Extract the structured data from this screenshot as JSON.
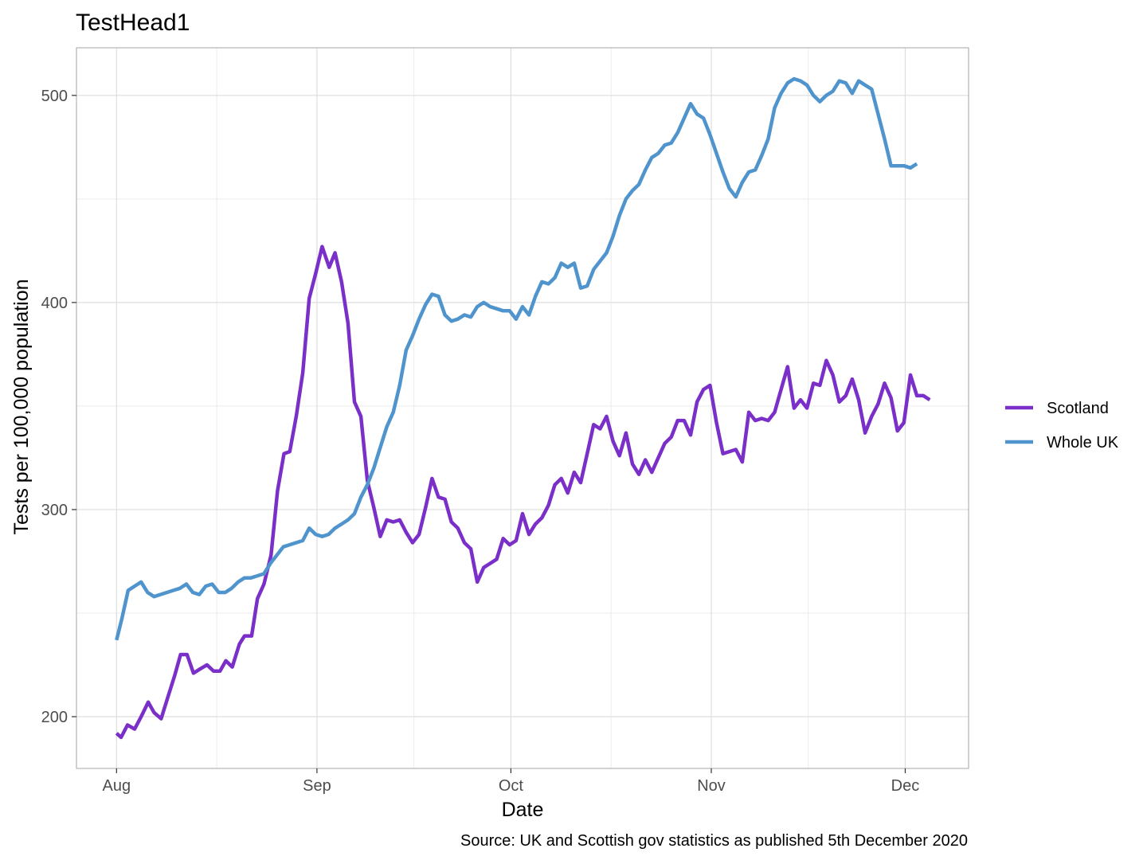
{
  "chart_data": {
    "type": "line",
    "title": "TestHead1",
    "xlabel": "Date",
    "ylabel": "Tests per 100,000 population",
    "caption": "Source: UK and Scottish gov statistics as published 5th December 2020",
    "x_tick_labels": [
      "Aug",
      "Sep",
      "Oct",
      "Nov",
      "Dec"
    ],
    "x_tick_days": [
      0,
      31,
      61,
      92,
      122
    ],
    "y_ticks": [
      200,
      300,
      400,
      500
    ],
    "y_minor_ticks": [
      250,
      350,
      450
    ],
    "x_minor_days": [
      15.5,
      46,
      76.5,
      107
    ],
    "xlim_days": [
      -6.2,
      131.8
    ],
    "ylim": [
      175,
      523
    ],
    "grid": true,
    "legend_position": "right",
    "x_start_date": "2020-08-01",
    "series": [
      {
        "name": "Scotland",
        "color": "#7B2FC9",
        "values": [
          [
            0,
            192
          ],
          [
            0.7,
            190
          ],
          [
            1.7,
            196
          ],
          [
            2.8,
            194
          ],
          [
            3.8,
            200
          ],
          [
            4.9,
            207
          ],
          [
            5.8,
            202
          ],
          [
            6.9,
            199
          ],
          [
            8,
            210
          ],
          [
            9,
            220
          ],
          [
            9.9,
            230
          ],
          [
            10.9,
            230
          ],
          [
            11.9,
            221
          ],
          [
            12.9,
            223
          ],
          [
            14,
            225
          ],
          [
            15,
            222
          ],
          [
            16,
            222
          ],
          [
            16.9,
            227
          ],
          [
            17.9,
            224
          ],
          [
            19,
            235
          ],
          [
            19.8,
            239
          ],
          [
            20.9,
            239
          ],
          [
            21.8,
            257
          ],
          [
            22.8,
            264
          ],
          [
            23.9,
            278
          ],
          [
            24.9,
            309
          ],
          [
            25.9,
            327
          ],
          [
            26.8,
            328
          ],
          [
            27.8,
            345
          ],
          [
            28.8,
            366
          ],
          [
            29.8,
            402
          ],
          [
            30.8,
            414
          ],
          [
            31.8,
            427
          ],
          [
            32.9,
            417
          ],
          [
            33.8,
            424
          ],
          [
            34.8,
            410
          ],
          [
            35.8,
            390
          ],
          [
            36.8,
            352
          ],
          [
            37.8,
            345
          ],
          [
            38.8,
            314
          ],
          [
            39.8,
            301
          ],
          [
            40.8,
            287
          ],
          [
            41.8,
            295
          ],
          [
            42.8,
            294
          ],
          [
            43.8,
            295
          ],
          [
            44.8,
            289
          ],
          [
            45.8,
            284
          ],
          [
            46.8,
            288
          ],
          [
            47.8,
            301
          ],
          [
            48.8,
            315
          ],
          [
            49.8,
            306
          ],
          [
            50.8,
            305
          ],
          [
            51.8,
            294
          ],
          [
            52.8,
            291
          ],
          [
            53.8,
            284
          ],
          [
            54.8,
            281
          ],
          [
            55.8,
            265
          ],
          [
            56.8,
            272
          ],
          [
            57.8,
            274
          ],
          [
            58.8,
            276
          ],
          [
            59.8,
            286
          ],
          [
            60.8,
            283
          ],
          [
            61.8,
            285
          ],
          [
            62.8,
            298
          ],
          [
            63.8,
            288
          ],
          [
            64.8,
            293
          ],
          [
            65.8,
            296
          ],
          [
            66.8,
            302
          ],
          [
            67.8,
            312
          ],
          [
            68.8,
            315
          ],
          [
            69.8,
            308
          ],
          [
            70.8,
            318
          ],
          [
            71.8,
            313
          ],
          [
            72.8,
            327
          ],
          [
            73.8,
            341
          ],
          [
            74.8,
            339
          ],
          [
            75.8,
            345
          ],
          [
            76.8,
            333
          ],
          [
            77.8,
            326
          ],
          [
            78.8,
            337
          ],
          [
            79.8,
            322
          ],
          [
            80.8,
            317
          ],
          [
            81.8,
            324
          ],
          [
            82.8,
            318
          ],
          [
            83.8,
            325
          ],
          [
            84.8,
            332
          ],
          [
            85.8,
            335
          ],
          [
            86.8,
            343
          ],
          [
            87.8,
            343
          ],
          [
            88.8,
            336
          ],
          [
            89.8,
            352
          ],
          [
            90.8,
            358
          ],
          [
            91.8,
            360
          ],
          [
            92.8,
            342
          ],
          [
            93.8,
            327
          ],
          [
            94.8,
            328
          ],
          [
            95.8,
            329
          ],
          [
            96.8,
            323
          ],
          [
            97.8,
            347
          ],
          [
            98.8,
            343
          ],
          [
            99.8,
            344
          ],
          [
            100.8,
            343
          ],
          [
            101.8,
            347
          ],
          [
            102.8,
            358
          ],
          [
            103.8,
            369
          ],
          [
            104.8,
            349
          ],
          [
            105.8,
            353
          ],
          [
            106.8,
            349
          ],
          [
            107.8,
            361
          ],
          [
            108.8,
            360
          ],
          [
            109.8,
            372
          ],
          [
            110.8,
            365
          ],
          [
            111.8,
            352
          ],
          [
            112.8,
            355
          ],
          [
            113.8,
            363
          ],
          [
            114.8,
            353
          ],
          [
            115.8,
            337
          ],
          [
            116.8,
            345
          ],
          [
            117.8,
            351
          ],
          [
            118.8,
            361
          ],
          [
            119.8,
            354
          ],
          [
            120.8,
            338
          ],
          [
            121.8,
            342
          ],
          [
            122.8,
            365
          ],
          [
            123.8,
            355
          ],
          [
            124.8,
            355
          ],
          [
            125.8,
            353
          ]
        ]
      },
      {
        "name": "Whole UK",
        "color": "#4F94CD",
        "values": [
          [
            0,
            237
          ],
          [
            0.8,
            247
          ],
          [
            1.8,
            261
          ],
          [
            2.8,
            263
          ],
          [
            3.8,
            265
          ],
          [
            4.8,
            260
          ],
          [
            5.8,
            258
          ],
          [
            6.8,
            259
          ],
          [
            7.8,
            260
          ],
          [
            8.8,
            261
          ],
          [
            9.8,
            262
          ],
          [
            10.8,
            264
          ],
          [
            11.8,
            260
          ],
          [
            12.8,
            259
          ],
          [
            13.8,
            263
          ],
          [
            14.8,
            264
          ],
          [
            15.8,
            260
          ],
          [
            16.8,
            260
          ],
          [
            17.8,
            262
          ],
          [
            18.8,
            265
          ],
          [
            19.8,
            267
          ],
          [
            20.8,
            267
          ],
          [
            21.8,
            268
          ],
          [
            22.8,
            269
          ],
          [
            23.8,
            274
          ],
          [
            24.8,
            278
          ],
          [
            25.8,
            282
          ],
          [
            26.8,
            283
          ],
          [
            27.8,
            284
          ],
          [
            28.8,
            285
          ],
          [
            29.8,
            291
          ],
          [
            30.8,
            288
          ],
          [
            31.8,
            287
          ],
          [
            32.8,
            288
          ],
          [
            33.8,
            291
          ],
          [
            34.8,
            293
          ],
          [
            35.8,
            295
          ],
          [
            36.8,
            298
          ],
          [
            37.8,
            306
          ],
          [
            38.8,
            312
          ],
          [
            39.8,
            320
          ],
          [
            40.8,
            330
          ],
          [
            41.8,
            340
          ],
          [
            42.8,
            347
          ],
          [
            43.8,
            360
          ],
          [
            44.8,
            377
          ],
          [
            45.8,
            384
          ],
          [
            46.8,
            392
          ],
          [
            47.8,
            399
          ],
          [
            48.8,
            404
          ],
          [
            49.8,
            403
          ],
          [
            50.8,
            394
          ],
          [
            51.8,
            391
          ],
          [
            52.8,
            392
          ],
          [
            53.8,
            394
          ],
          [
            54.8,
            393
          ],
          [
            55.8,
            398
          ],
          [
            56.8,
            400
          ],
          [
            57.8,
            398
          ],
          [
            58.8,
            397
          ],
          [
            59.8,
            396
          ],
          [
            60.8,
            396
          ],
          [
            61.8,
            392
          ],
          [
            62.8,
            398
          ],
          [
            63.8,
            394
          ],
          [
            64.8,
            403
          ],
          [
            65.8,
            410
          ],
          [
            66.8,
            409
          ],
          [
            67.8,
            412
          ],
          [
            68.8,
            419
          ],
          [
            69.8,
            417
          ],
          [
            70.8,
            419
          ],
          [
            71.8,
            407
          ],
          [
            72.8,
            408
          ],
          [
            73.8,
            416
          ],
          [
            74.8,
            420
          ],
          [
            75.8,
            424
          ],
          [
            76.8,
            432
          ],
          [
            77.8,
            442
          ],
          [
            78.8,
            450
          ],
          [
            79.8,
            454
          ],
          [
            80.8,
            457
          ],
          [
            81.8,
            464
          ],
          [
            82.8,
            470
          ],
          [
            83.8,
            472
          ],
          [
            84.8,
            476
          ],
          [
            85.8,
            477
          ],
          [
            86.8,
            482
          ],
          [
            87.8,
            489
          ],
          [
            88.8,
            496
          ],
          [
            89.8,
            491
          ],
          [
            90.8,
            489
          ],
          [
            91.8,
            481
          ],
          [
            92.8,
            472
          ],
          [
            93.8,
            463
          ],
          [
            94.8,
            455
          ],
          [
            95.8,
            451
          ],
          [
            96.8,
            458
          ],
          [
            97.8,
            463
          ],
          [
            98.8,
            464
          ],
          [
            99.8,
            471
          ],
          [
            100.8,
            479
          ],
          [
            101.8,
            494
          ],
          [
            102.8,
            501
          ],
          [
            103.8,
            506
          ],
          [
            104.8,
            508
          ],
          [
            105.8,
            507
          ],
          [
            106.8,
            505
          ],
          [
            107.8,
            500
          ],
          [
            108.8,
            497
          ],
          [
            109.8,
            500
          ],
          [
            110.8,
            502
          ],
          [
            111.8,
            507
          ],
          [
            112.8,
            506
          ],
          [
            113.8,
            501
          ],
          [
            114.8,
            507
          ],
          [
            115.8,
            505
          ],
          [
            116.8,
            503
          ],
          [
            117.8,
            491
          ],
          [
            118.8,
            479
          ],
          [
            119.8,
            466
          ],
          [
            120.8,
            466
          ],
          [
            121.8,
            466
          ],
          [
            122.8,
            465
          ],
          [
            123.8,
            467
          ]
        ]
      }
    ]
  }
}
